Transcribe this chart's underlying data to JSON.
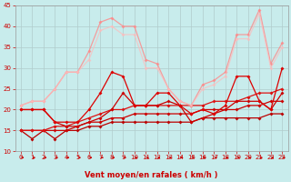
{
  "xlabel": "Vent moyen/en rafales ( km/h )",
  "xlim": [
    -0.5,
    23.5
  ],
  "ylim": [
    10,
    45
  ],
  "yticks": [
    10,
    15,
    20,
    25,
    30,
    35,
    40,
    45
  ],
  "xticks": [
    0,
    1,
    2,
    3,
    4,
    5,
    6,
    7,
    8,
    9,
    10,
    11,
    12,
    13,
    14,
    15,
    16,
    17,
    18,
    19,
    20,
    21,
    22,
    23
  ],
  "bg_color": "#c8ecec",
  "grid_color": "#b0cccc",
  "lines": [
    {
      "x": [
        0,
        1,
        2,
        3,
        4,
        5,
        6,
        7,
        8,
        9,
        10,
        11,
        12,
        13,
        14,
        15,
        16,
        17,
        18,
        19,
        20,
        21,
        22,
        23
      ],
      "y": [
        15,
        13,
        15,
        13,
        15,
        15,
        16,
        16,
        17,
        17,
        17,
        17,
        17,
        17,
        17,
        17,
        18,
        18,
        18,
        18,
        18,
        18,
        19,
        19
      ],
      "color": "#bb0000",
      "lw": 0.9,
      "marker": "D",
      "ms": 2.0,
      "alpha": 1.0
    },
    {
      "x": [
        0,
        1,
        2,
        3,
        4,
        5,
        6,
        7,
        8,
        9,
        10,
        11,
        12,
        13,
        14,
        15,
        16,
        17,
        18,
        19,
        20,
        21,
        22,
        23
      ],
      "y": [
        15,
        15,
        15,
        15,
        15,
        16,
        17,
        17,
        18,
        18,
        19,
        19,
        19,
        19,
        19,
        19,
        20,
        20,
        20,
        20,
        21,
        21,
        22,
        22
      ],
      "color": "#cc0000",
      "lw": 0.9,
      "marker": "D",
      "ms": 2.0,
      "alpha": 1.0
    },
    {
      "x": [
        0,
        1,
        2,
        3,
        4,
        5,
        6,
        7,
        8,
        9,
        10,
        11,
        12,
        13,
        14,
        15,
        16,
        17,
        18,
        19,
        20,
        21,
        22,
        23
      ],
      "y": [
        15,
        15,
        15,
        16,
        16,
        17,
        18,
        19,
        20,
        20,
        21,
        21,
        21,
        21,
        21,
        21,
        21,
        22,
        22,
        22,
        23,
        24,
        24,
        25
      ],
      "color": "#dd1111",
      "lw": 0.9,
      "marker": "D",
      "ms": 2.0,
      "alpha": 1.0
    },
    {
      "x": [
        0,
        1,
        2,
        3,
        4,
        5,
        6,
        7,
        8,
        9,
        10,
        11,
        12,
        13,
        14,
        15,
        16,
        17,
        18,
        19,
        20,
        21,
        22,
        23
      ],
      "y": [
        20,
        20,
        20,
        17,
        16,
        16,
        17,
        18,
        20,
        24,
        21,
        21,
        21,
        22,
        21,
        17,
        18,
        19,
        20,
        22,
        22,
        22,
        20,
        24
      ],
      "color": "#cc0000",
      "lw": 0.9,
      "marker": "D",
      "ms": 2.0,
      "alpha": 1.0
    },
    {
      "x": [
        0,
        1,
        2,
        3,
        4,
        5,
        6,
        7,
        8,
        9,
        10,
        11,
        12,
        13,
        14,
        15,
        16,
        17,
        18,
        19,
        20,
        21,
        22,
        23
      ],
      "y": [
        20,
        20,
        20,
        17,
        17,
        17,
        20,
        24,
        29,
        28,
        21,
        21,
        24,
        24,
        21,
        19,
        20,
        19,
        21,
        28,
        28,
        22,
        20,
        30
      ],
      "color": "#dd0000",
      "lw": 0.9,
      "marker": "D",
      "ms": 2.0,
      "alpha": 1.0
    },
    {
      "x": [
        0,
        1,
        2,
        3,
        4,
        5,
        6,
        7,
        8,
        9,
        10,
        11,
        12,
        13,
        14,
        15,
        16,
        17,
        18,
        19,
        20,
        21,
        22,
        23
      ],
      "y": [
        21,
        22,
        22,
        25,
        29,
        29,
        34,
        41,
        42,
        40,
        40,
        32,
        31,
        25,
        22,
        21,
        26,
        27,
        29,
        38,
        38,
        44,
        31,
        36
      ],
      "color": "#ff8888",
      "lw": 0.9,
      "marker": "D",
      "ms": 2.0,
      "alpha": 0.8
    },
    {
      "x": [
        0,
        1,
        2,
        3,
        4,
        5,
        6,
        7,
        8,
        9,
        10,
        11,
        12,
        13,
        14,
        15,
        16,
        17,
        18,
        19,
        20,
        21,
        22,
        23
      ],
      "y": [
        21,
        22,
        22,
        25,
        29,
        29,
        32,
        39,
        40,
        38,
        38,
        30,
        30,
        25,
        22,
        21,
        25,
        26,
        28,
        37,
        37,
        43,
        30,
        35
      ],
      "color": "#ffbbbb",
      "lw": 0.9,
      "marker": "D",
      "ms": 2.0,
      "alpha": 0.7
    }
  ],
  "arrow_color": "#cc0000",
  "xlabel_color": "#cc0000",
  "xlabel_fontsize": 6.0,
  "tick_fontsize": 5.0,
  "tick_color": "#cc0000"
}
